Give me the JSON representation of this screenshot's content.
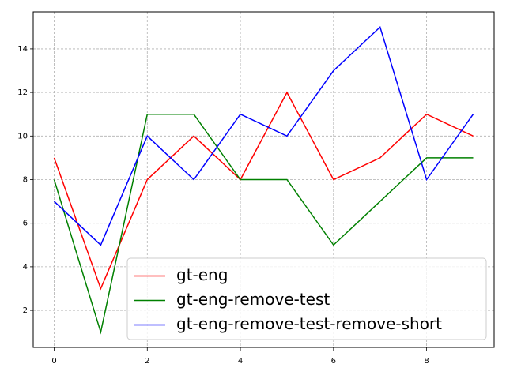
{
  "chart_data": {
    "type": "line",
    "x": [
      0,
      1,
      2,
      3,
      4,
      5,
      6,
      7,
      8,
      9
    ],
    "series": [
      {
        "name": "gt-eng",
        "color": "#ff0000",
        "values": [
          9,
          3,
          8,
          10,
          8,
          12,
          8,
          9,
          11,
          10
        ]
      },
      {
        "name": "gt-eng-remove-test",
        "color": "#008000",
        "values": [
          8,
          1,
          11,
          11,
          8,
          8,
          5,
          7,
          9,
          9
        ]
      },
      {
        "name": "gt-eng-remove-test-remove-short",
        "color": "#0000ff",
        "values": [
          7,
          5,
          10,
          8,
          11,
          10,
          13,
          15,
          8,
          11
        ]
      }
    ],
    "xlim": [
      -0.45,
      9.45
    ],
    "ylim": [
      0.3,
      15.7
    ],
    "xticks": [
      0,
      2,
      4,
      6,
      8
    ],
    "yticks": [
      2,
      4,
      6,
      8,
      10,
      12,
      14
    ],
    "grid": true,
    "legend": "lower right"
  }
}
